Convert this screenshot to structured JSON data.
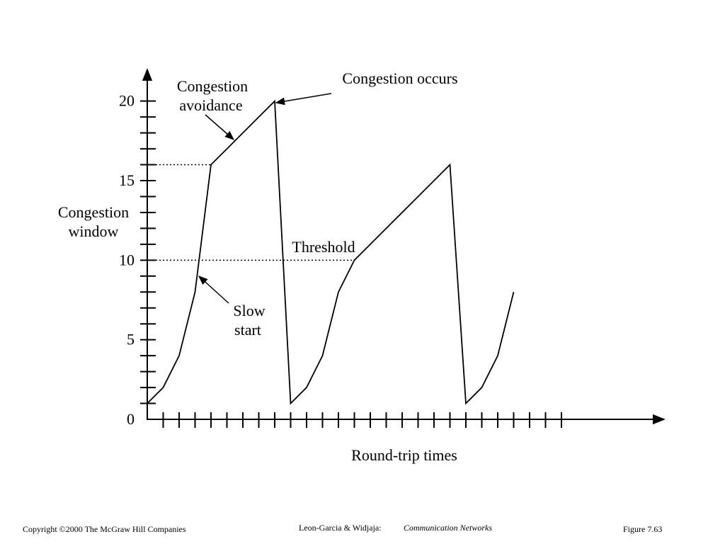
{
  "chart_data": {
    "type": "line",
    "ylabel": [
      "Congestion",
      "window"
    ],
    "xlabel": "Round-trip times",
    "x": [
      0,
      1,
      2,
      3,
      4,
      5,
      6,
      7,
      8,
      9,
      10,
      11,
      12,
      13,
      14,
      15,
      16,
      17,
      18,
      19,
      20,
      21,
      22,
      23
    ],
    "series": [
      {
        "color": "#000000",
        "values": [
          1,
          2,
          4,
          8,
          16,
          17,
          18,
          19,
          20,
          1,
          2,
          4,
          8,
          10,
          11,
          12,
          13,
          14,
          15,
          16,
          1,
          2,
          4,
          8
        ]
      }
    ],
    "xlim": [
      0,
      32.4
    ],
    "ylim": [
      0,
      21.9
    ],
    "yticks": [
      0,
      5,
      10,
      15,
      20
    ],
    "yminorticks": [
      1,
      2,
      3,
      4,
      5,
      6,
      7,
      8,
      9,
      10,
      11,
      12,
      13,
      14,
      15,
      16,
      17,
      18,
      19,
      20
    ],
    "xticks": [
      1,
      2,
      3,
      4,
      5,
      6,
      7,
      8,
      9,
      10,
      11,
      12,
      13,
      14,
      15,
      16,
      17,
      18,
      19,
      20,
      21,
      22,
      23,
      24,
      25,
      26
    ],
    "thresholds": [
      {
        "value": 16,
        "x_end": 4
      },
      {
        "value": 10,
        "x_end": 13
      }
    ],
    "annotations": {
      "avoidance": [
        "Congestion",
        "avoidance"
      ],
      "occurs": "Congestion occurs",
      "threshold": "Threshold",
      "slow_start": [
        "Slow",
        "start"
      ]
    }
  },
  "footer": {
    "copyright": "Copyright ©2000 The McGraw Hill Companies",
    "authors": "Leon-Garcia & Widjaja:",
    "book": "Communication Networks",
    "figure": "Figure 7.63"
  }
}
